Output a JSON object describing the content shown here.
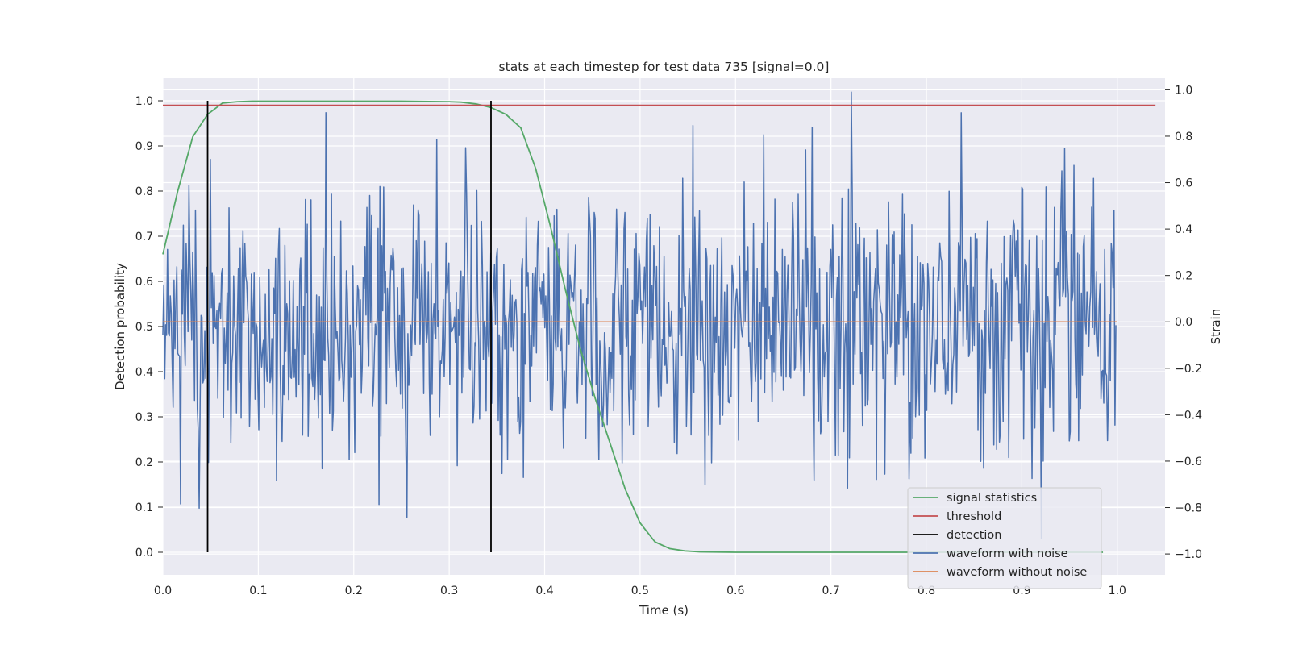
{
  "chart_data": {
    "type": "line",
    "title": "stats at each timestep for test data 735 [signal=0.0]",
    "xlabel": "Time (s)",
    "ylabel": "Detection probability",
    "y2label": "Strain",
    "xlim": [
      0.0,
      1.05
    ],
    "ylim": [
      -0.05,
      1.05
    ],
    "y2lim": [
      -1.09,
      1.05
    ],
    "x_ticks": [
      0.0,
      0.1,
      0.2,
      0.3,
      0.4,
      0.5,
      0.6,
      0.7,
      0.8,
      0.9,
      1.0
    ],
    "x_tick_labels": [
      "0.0",
      "0.1",
      "0.2",
      "0.3",
      "0.4",
      "0.5",
      "0.6",
      "0.7",
      "0.8",
      "0.9",
      "1.0"
    ],
    "y_ticks": [
      0.0,
      0.1,
      0.2,
      0.3,
      0.4,
      0.5,
      0.6,
      0.7,
      0.8,
      0.9,
      1.0
    ],
    "y_tick_labels": [
      "0.0",
      "0.1",
      "0.2",
      "0.3",
      "0.4",
      "0.5",
      "0.6",
      "0.7",
      "0.8",
      "0.9",
      "1.0"
    ],
    "y2_ticks": [
      -1.0,
      -0.8,
      -0.6,
      -0.4,
      -0.2,
      0.0,
      0.2,
      0.4,
      0.6,
      0.8,
      1.0
    ],
    "y2_tick_labels": [
      "−1.0",
      "−0.8",
      "−0.6",
      "−0.4",
      "−0.2",
      "0.0",
      "0.2",
      "0.4",
      "0.6",
      "0.8",
      "1.0"
    ],
    "grid": true,
    "legend_position": "lower-right",
    "series": [
      {
        "name": "signal statistics",
        "axis": "left",
        "color": "#55a868",
        "x": [
          0.0,
          0.0156,
          0.0313,
          0.0469,
          0.0625,
          0.0781,
          0.0938,
          0.1094,
          0.125,
          0.15,
          0.2,
          0.25,
          0.3,
          0.3125,
          0.3281,
          0.3438,
          0.3594,
          0.375,
          0.3906,
          0.4063,
          0.4219,
          0.4375,
          0.4531,
          0.4688,
          0.4844,
          0.5,
          0.5156,
          0.5313,
          0.5469,
          0.5625,
          0.6,
          0.7,
          0.8,
          0.9,
          0.985
        ],
        "y": [
          0.66,
          0.8,
          0.92,
          0.97,
          0.995,
          0.998,
          0.999,
          0.999,
          0.999,
          0.999,
          0.999,
          0.999,
          0.998,
          0.997,
          0.993,
          0.985,
          0.97,
          0.94,
          0.85,
          0.72,
          0.58,
          0.45,
          0.34,
          0.24,
          0.14,
          0.065,
          0.023,
          0.008,
          0.003,
          0.001,
          0.0,
          0.0,
          0.0,
          0.0,
          0.0
        ]
      },
      {
        "name": "threshold",
        "axis": "left",
        "color": "#c44e52",
        "x": [
          0.0,
          1.04
        ],
        "y": [
          0.99,
          0.99
        ]
      },
      {
        "name": "detection",
        "axis": "left",
        "color": "#000000",
        "type": "vlines",
        "x": [
          0.0469,
          0.3438
        ],
        "y": [
          0.0,
          1.0
        ]
      },
      {
        "name": "waveform with noise",
        "axis": "right",
        "color": "#4c72b0",
        "sampling": "noisy signal, ~1000 samples over 0.0–1.0 s, std ≈ 0.28, peaks near ±0.95",
        "x_start": 0.0,
        "x_end": 0.9985,
        "n_points": 1024,
        "y": []
      },
      {
        "name": "waveform without noise",
        "axis": "right",
        "color": "#dd8452",
        "x": [
          0.0,
          1.0
        ],
        "y": [
          0.0,
          0.0
        ]
      }
    ]
  }
}
